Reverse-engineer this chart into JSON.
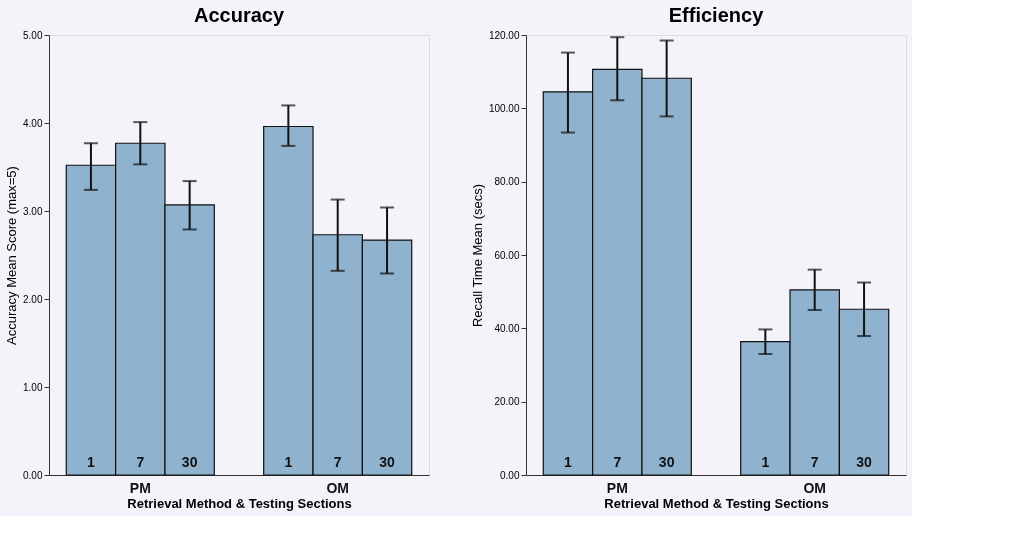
{
  "chart_data": [
    {
      "type": "bar",
      "title": "Accuracy",
      "xlabel": "Retrieval Method & Testing Sections",
      "ylabel": "Accuracy Mean Score (max=5)",
      "categories": [
        "1",
        "7",
        "30",
        null,
        "1",
        "7",
        "30"
      ],
      "annotations": [
        "PM",
        "OM"
      ],
      "values": [
        3.52,
        3.77,
        3.07,
        null,
        3.96,
        2.73,
        2.67
      ],
      "errors": [
        [
          3.24,
          3.77
        ],
        [
          3.53,
          4.01
        ],
        [
          2.79,
          3.34
        ],
        null,
        [
          3.74,
          4.2
        ],
        [
          2.32,
          3.13
        ],
        [
          2.29,
          3.04
        ]
      ],
      "color": "#8fb3cf",
      "ylim": [
        0,
        5
      ],
      "yticks": [
        {
          "value": 0,
          "label": "0.00"
        },
        {
          "value": 1,
          "label": "1.00"
        },
        {
          "value": 2,
          "label": "2.00"
        },
        {
          "value": 3,
          "label": "3.00"
        },
        {
          "value": 4,
          "label": "4.00"
        },
        {
          "value": 5,
          "label": "5.00"
        }
      ],
      "grid": false
    },
    {
      "type": "bar",
      "title": "Efficiency",
      "xlabel": "Retrieval Method & Testing Sections",
      "ylabel": "Recall Time Mean (secs)",
      "categories": [
        "1",
        "7",
        "30",
        null,
        "1",
        "7",
        "30"
      ],
      "annotations": [
        "PM",
        "OM"
      ],
      "values": [
        104.5,
        110.6,
        108.2,
        null,
        36.4,
        50.5,
        45.2
      ],
      "errors": [
        [
          93.4,
          115.2
        ],
        [
          102.2,
          119.4
        ],
        [
          97.8,
          118.5
        ],
        null,
        [
          33.0,
          39.7
        ],
        [
          45.0,
          56.0
        ],
        [
          37.9,
          52.5
        ]
      ],
      "color": "#8fb3cf",
      "ylim": [
        0,
        120
      ],
      "yticks": [
        {
          "value": 0,
          "label": "0.00"
        },
        {
          "value": 20,
          "label": "20.00"
        },
        {
          "value": 40,
          "label": "40.00"
        },
        {
          "value": 60,
          "label": "60.00"
        },
        {
          "value": 80,
          "label": "80.00"
        },
        {
          "value": 100,
          "label": "100.00"
        },
        {
          "value": 120,
          "label": "120.00"
        }
      ],
      "grid": false
    }
  ]
}
